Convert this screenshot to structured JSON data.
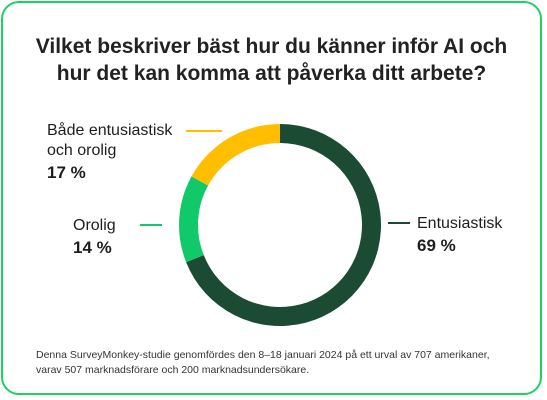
{
  "title_lines": [
    "Vilket beskriver bäst hur du känner inför AI och",
    "hur det kan komma att påverka ditt arbete?"
  ],
  "chart_data": {
    "type": "pie",
    "style": "donut",
    "title": "Vilket beskriver bäst hur du känner inför AI och hur det kan komma att påverka ditt arbete?",
    "slices": [
      {
        "label": "Entusiastisk",
        "value": 69,
        "display": "69 %",
        "color": "#1c4b34"
      },
      {
        "label": "Orolig",
        "value": 14,
        "display": "14 %",
        "color": "#12c96a"
      },
      {
        "label": "Både entusiastisk och orolig",
        "label_lines": [
          "Både entusiastisk",
          "och orolig"
        ],
        "value": 17,
        "display": "17 %",
        "color": "#ffbf00"
      }
    ]
  },
  "footnote_lines": [
    "Denna SurveyMonkey-studie genomfördes den 8–18 januari 2024 på ett urval av 707 amerikaner,",
    "varav 507 marknadsförare och 200 marknadsundersökare."
  ],
  "colors": {
    "border": "#1fd063",
    "text": "#1e1e1e"
  }
}
